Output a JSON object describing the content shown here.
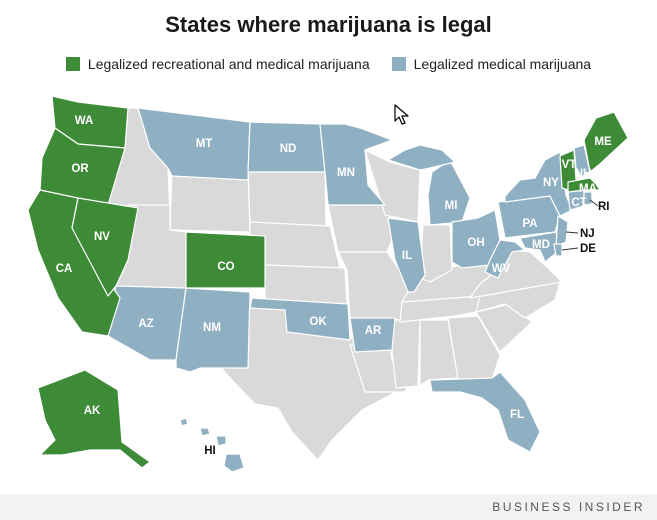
{
  "title": "States where marijuana is legal",
  "legend": [
    {
      "label": "Legalized recreational and medical marijuana",
      "color": "#3d8b37"
    },
    {
      "label": "Legalized medical marijuana",
      "color": "#8fb0c3"
    }
  ],
  "colors": {
    "recreational": "#3d8b37",
    "medical": "#8fb0c3",
    "none": "#d9d9d9"
  },
  "states": {
    "recreational": [
      "WA",
      "OR",
      "CA",
      "NV",
      "CO",
      "AK",
      "VT",
      "MA",
      "ME"
    ],
    "medical": [
      "MT",
      "ND",
      "MN",
      "MI",
      "IL",
      "OH",
      "PA",
      "NY",
      "NH",
      "CT",
      "RI",
      "NJ",
      "DE",
      "MD",
      "WV",
      "AZ",
      "NM",
      "OK",
      "AR",
      "FL",
      "HI"
    ]
  },
  "labels": {
    "wa": "WA",
    "or": "OR",
    "ca": "CA",
    "nv": "NV",
    "co": "CO",
    "ak": "AK",
    "mt": "MT",
    "nd": "ND",
    "mn": "MN",
    "mi": "MI",
    "il": "IL",
    "oh": "OH",
    "pa": "PA",
    "ny": "NY",
    "vt": "VT",
    "nh": "NH",
    "me": "ME",
    "ma": "MA",
    "ct": "CT",
    "ri": "RI",
    "nj": "NJ",
    "de": "DE",
    "md": "MD",
    "wv": "WV",
    "az": "AZ",
    "nm": "NM",
    "ok": "OK",
    "ar": "AR",
    "fl": "FL",
    "hi": "HI"
  },
  "brand": "BUSINESS INSIDER"
}
